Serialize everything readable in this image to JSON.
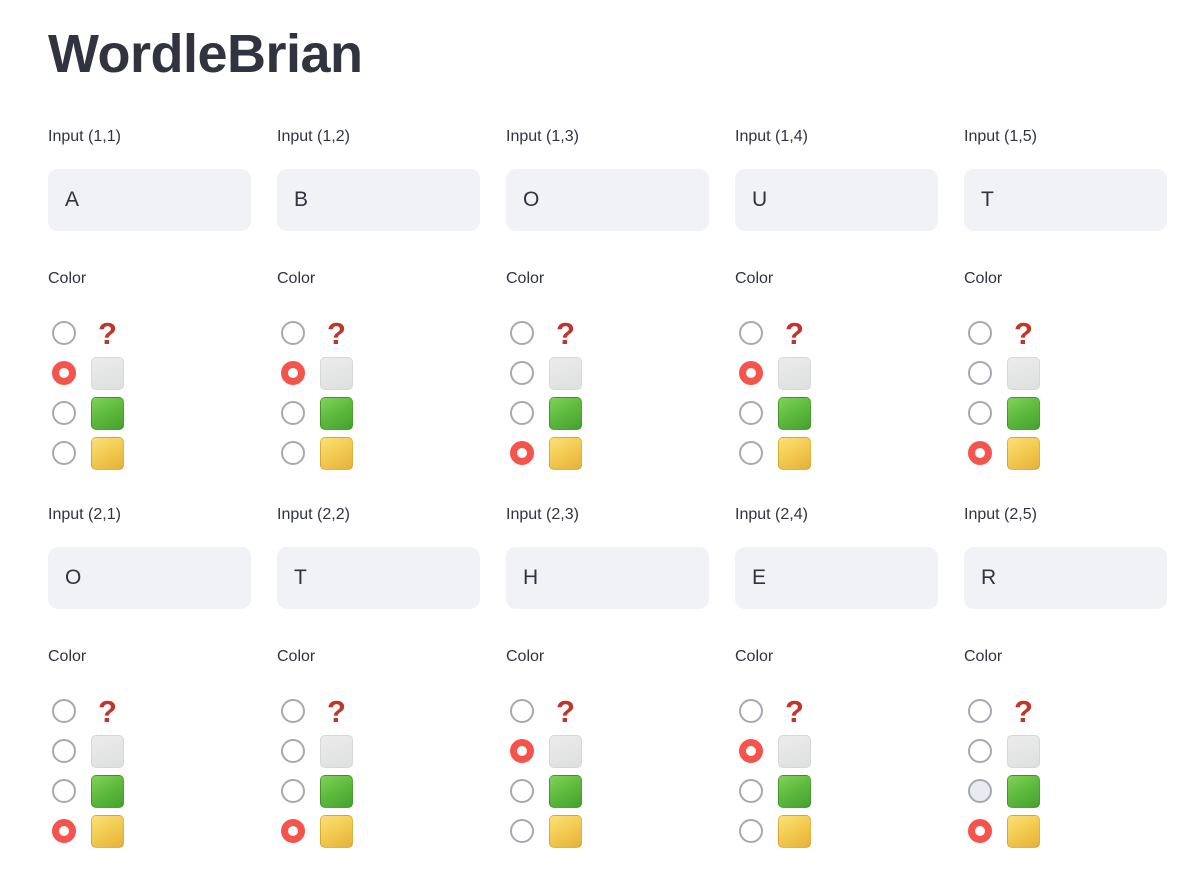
{
  "app": {
    "title": "WordleBrian"
  },
  "colors": {
    "text": "#31333F",
    "input_background": "#F0F2F6",
    "radio_unselected_border": "#A6A9B1",
    "radio_selected": "#F4544C",
    "question_mark": "#C0362C",
    "square_gray": "#E4E5E5",
    "square_green": "#55B239",
    "square_yellow": "#F1C94E"
  },
  "color_options": [
    {
      "id": "unknown",
      "type": "question",
      "glyph": "?",
      "icon_name": "question-mark-icon"
    },
    {
      "id": "gray",
      "type": "square",
      "icon_name": "gray-square-icon"
    },
    {
      "id": "green",
      "type": "square",
      "icon_name": "green-square-icon"
    },
    {
      "id": "yellow",
      "type": "square",
      "icon_name": "yellow-square-icon"
    }
  ],
  "cells": [
    {
      "label": "Input (1,1)",
      "value": "A",
      "color_label": "Color",
      "selected": "gray"
    },
    {
      "label": "Input (1,2)",
      "value": "B",
      "color_label": "Color",
      "selected": "gray"
    },
    {
      "label": "Input (1,3)",
      "value": "O",
      "color_label": "Color",
      "selected": "yellow"
    },
    {
      "label": "Input (1,4)",
      "value": "U",
      "color_label": "Color",
      "selected": "gray"
    },
    {
      "label": "Input (1,5)",
      "value": "T",
      "color_label": "Color",
      "selected": "yellow"
    },
    {
      "label": "Input (2,1)",
      "value": "O",
      "color_label": "Color",
      "selected": "yellow"
    },
    {
      "label": "Input (2,2)",
      "value": "T",
      "color_label": "Color",
      "selected": "yellow"
    },
    {
      "label": "Input (2,3)",
      "value": "H",
      "color_label": "Color",
      "selected": "gray"
    },
    {
      "label": "Input (2,4)",
      "value": "E",
      "color_label": "Color",
      "selected": "gray"
    },
    {
      "label": "Input (2,5)",
      "value": "R",
      "color_label": "Color",
      "selected": "yellow",
      "hovered": "green"
    }
  ]
}
